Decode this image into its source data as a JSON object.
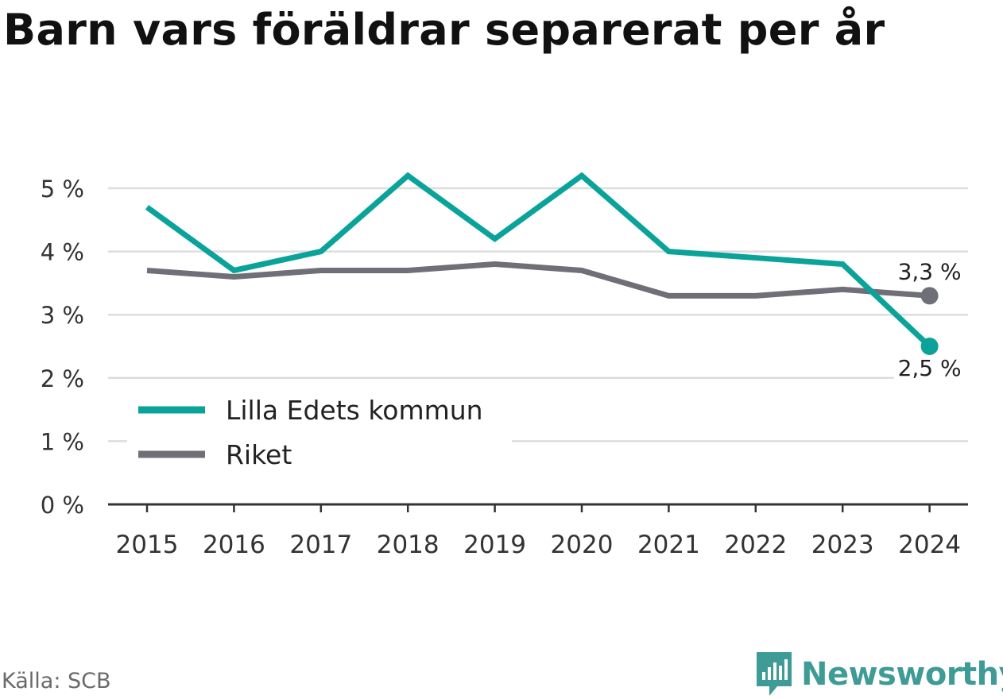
{
  "title": "Barn vars föräldrar separerat per år",
  "source": "Källa: SCB",
  "brand": "Newsworthy",
  "colors": {
    "accent": "#0aa39a",
    "national": "#6f6f77",
    "grid": "#dddddd",
    "axis": "#333333",
    "brand": "#3f9b96"
  },
  "chart_data": {
    "type": "line",
    "x": [
      "2015",
      "2016",
      "2017",
      "2018",
      "2019",
      "2020",
      "2021",
      "2022",
      "2023",
      "2024"
    ],
    "y_ticks": [
      "0 %",
      "1 %",
      "2 %",
      "3 %",
      "4 %",
      "5 %"
    ],
    "ylim": [
      0,
      5
    ],
    "grid": true,
    "legend_position": "lower-left",
    "series": [
      {
        "name": "Lilla Edets kommun",
        "values": [
          4.7,
          3.7,
          4.0,
          5.2,
          4.2,
          5.2,
          4.0,
          3.9,
          3.8,
          2.5
        ],
        "end_label": "2,5 %"
      },
      {
        "name": "Riket",
        "values": [
          3.7,
          3.6,
          3.7,
          3.7,
          3.8,
          3.7,
          3.3,
          3.3,
          3.4,
          3.3
        ],
        "end_label": "3,3 %"
      }
    ]
  }
}
